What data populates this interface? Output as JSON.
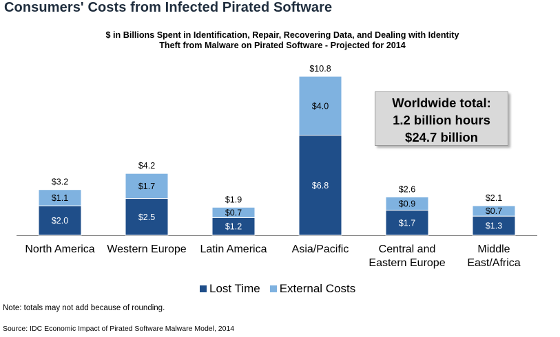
{
  "page_title": "Consumers' Costs from Infected Pirated Software",
  "chart_data": {
    "type": "bar",
    "stacked": true,
    "title_lines": [
      "$ in Billions Spent in Identification,  Repair, Recovering Data, and Dealing with Identity",
      "Theft from Malware on Pirated Software - Projected for 2014"
    ],
    "categories": [
      [
        "North America"
      ],
      [
        "Western Europe"
      ],
      [
        "Latin America"
      ],
      [
        "Asia/Pacific"
      ],
      [
        "Central and",
        "Eastern Europe"
      ],
      [
        "Middle",
        "East/Africa"
      ]
    ],
    "series": [
      {
        "name": "Lost Time",
        "color": "#1f4e89",
        "values": [
          2.0,
          2.5,
          1.2,
          6.8,
          1.7,
          1.3
        ],
        "labels": [
          "$2.0",
          "$2.5",
          "$1.2",
          "$6.8",
          "$1.7",
          "$1.3"
        ]
      },
      {
        "name": "External Costs",
        "color": "#7fb2e0",
        "values": [
          1.1,
          1.7,
          0.7,
          4.0,
          0.9,
          0.7
        ],
        "labels": [
          "$1.1",
          "$1.7",
          "$0.7",
          "$4.0",
          "$0.9",
          "$0.7"
        ]
      }
    ],
    "totals": [
      3.2,
      4.2,
      1.9,
      10.8,
      2.6,
      2.1
    ],
    "total_labels": [
      "$3.2",
      "$4.2",
      "$1.9",
      "$10.8",
      "$2.6",
      "$2.1"
    ],
    "ylim": [
      0,
      10.8
    ],
    "grid": false,
    "legend_position": "bottom"
  },
  "callout": {
    "line1": "Worldwide total:",
    "line2": "1.2 billion hours",
    "line3": "$24.7 billion"
  },
  "note": "Note: totals may not add because of rounding.",
  "source": "Source: IDC Economic Impact of Pirated Software Malware Model, 2014"
}
